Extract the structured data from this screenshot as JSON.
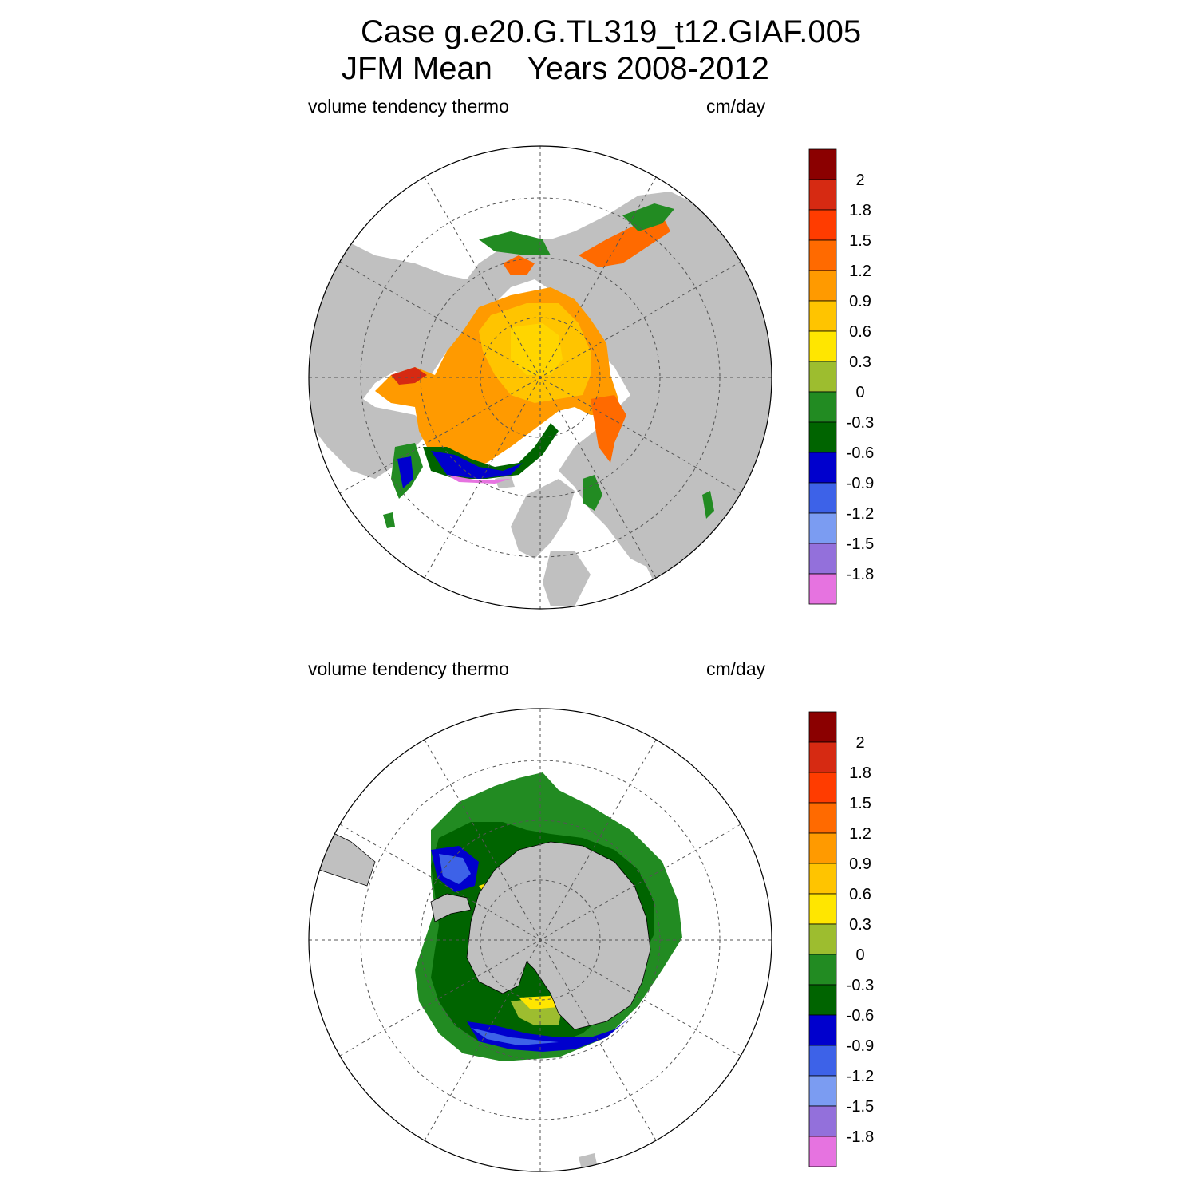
{
  "title_line1": "Case g.e20.G.TL319_t12.GIAF.005",
  "title_line2": "JFM Mean    Years 2008-2012",
  "panels": [
    {
      "name": "north",
      "left_label": "volume tendency thermo",
      "right_label": "cm/day"
    },
    {
      "name": "south",
      "left_label": "volume tendency thermo",
      "right_label": "cm/day"
    }
  ],
  "colorbar": {
    "labels": [
      "2",
      "1.8",
      "1.5",
      "1.2",
      "0.9",
      "0.6",
      "0.3",
      "0",
      "-0.3",
      "-0.6",
      "-0.9",
      "-1.2",
      "-1.5",
      "-1.8"
    ],
    "colors": [
      "#8b0000",
      "#d62a12",
      "#ff3c00",
      "#ff6a00",
      "#ff9a00",
      "#ffc400",
      "#ffe600",
      "#9dbd2f",
      "#228b22",
      "#006400",
      "#0000cd",
      "#3d62e8",
      "#7b9cf2",
      "#9370db",
      "#e673e0"
    ]
  },
  "colors": {
    "land": "#c0c0c0",
    "ocean": "#ffffff"
  }
}
